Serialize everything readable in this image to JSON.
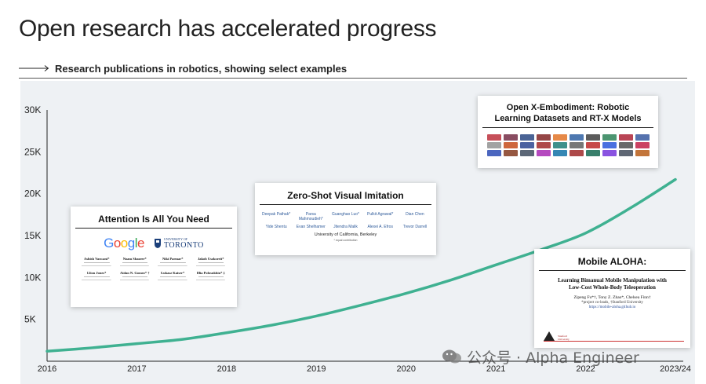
{
  "header": {
    "title": "Open research has accelerated progress",
    "subtitle": "Research publications in robotics, showing select examples"
  },
  "colors": {
    "line": "#3fb191",
    "panel": "#eef1f4",
    "axis": "#222222"
  },
  "chart_data": {
    "type": "line",
    "title": "Open research has accelerated progress",
    "subtitle": "Research publications in robotics, showing select examples",
    "xlabel": "",
    "ylabel": "",
    "categories": [
      "2016",
      "2017",
      "2018",
      "2019",
      "2020",
      "2021",
      "2022",
      "2023/24"
    ],
    "ytick_labels": [
      "30K",
      "25K",
      "20K",
      "15K",
      "10K",
      "5K"
    ],
    "ytick_values": [
      30000,
      25000,
      20000,
      15000,
      10000,
      5000
    ],
    "ylim": [
      0,
      30000
    ],
    "grid": false,
    "legend": "none",
    "series": [
      {
        "x": [
          0,
          0.5,
          1,
          1.5,
          2,
          2.5,
          3,
          3.5,
          4,
          4.5,
          5,
          5.5,
          6,
          6.5,
          7
        ],
        "values": [
          1200,
          1600,
          2100,
          2600,
          3400,
          4300,
          5400,
          6700,
          8100,
          9700,
          11500,
          13300,
          15300,
          18300,
          21700
        ]
      }
    ]
  },
  "annotations": {
    "attention": {
      "title": "Attention Is All You Need",
      "logo_google": "Google",
      "logo_toronto_small": "UNIVERSITY OF",
      "logo_toronto": "TORONTO",
      "authors": [
        "Ashish Vaswani*",
        "Noam Shazeer*",
        "Niki Parmar*",
        "Jakob Uszkoreit*",
        "Llion Jones*",
        "Aidan N. Gomez* †",
        "Łukasz Kaiser*",
        "Illia Polosukhin* ‡"
      ]
    },
    "zeroshot": {
      "title": "Zero-Shot Visual Imitation",
      "authors": [
        "Deepak Pathak*",
        "Parsa Mahmoudieh*",
        "Guanghao Luo*",
        "Pulkit Agrawal*",
        "Dian Chen",
        "Yide Shentu",
        "Evan Shelhamer",
        "Jitendra Malik",
        "Alexei A. Efros",
        "Trevor Darrell"
      ],
      "affiliation": "University of California, Berkeley",
      "note": "* equal contribution"
    },
    "oxe": {
      "title_line1": "Open X-Embodiment: Robotic",
      "title_line2": "Learning Datasets and RT-X Models"
    },
    "aloha": {
      "title": "Mobile ALOHA:",
      "heading_line1": "Learning Bimanual Mobile Manipulation with",
      "heading_line2": "Low-Cost Whole-Body Teleoperation",
      "authors": "Zipeng Fu*†, Tony Z. Zhao*, Chelsea Finn†",
      "note": "*project co-leads, †Stanford University",
      "url": "https://mobile-aloha.github.io"
    }
  },
  "watermark": {
    "text": "公众号 · Alpha Engineer"
  }
}
